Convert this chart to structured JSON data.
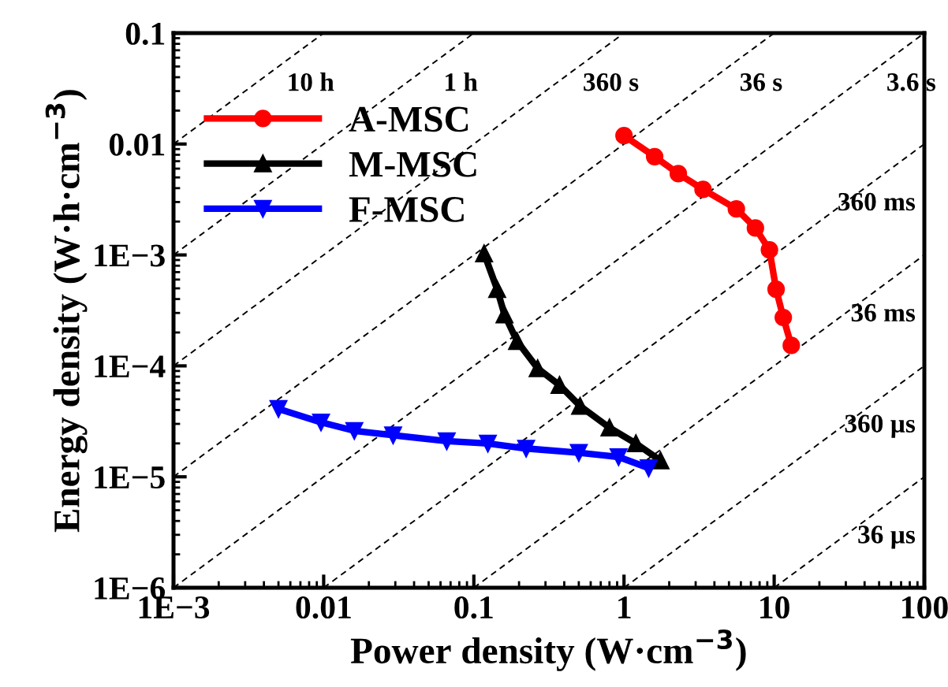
{
  "chart_data": {
    "type": "line",
    "xlabel": "Power density (W·cm$^{−3}$)",
    "ylabel": "Energy density (W·h·cm$^{−3}$)",
    "log": "xy",
    "xlim": [
      0.001,
      100
    ],
    "ylim": [
      1e-06,
      0.1
    ],
    "xticks": [
      {
        "value": 0.001,
        "label": "1E−3"
      },
      0.01,
      0.1,
      1,
      10,
      100
    ],
    "yticks": [
      {
        "value": 1e-06,
        "label": "1E−6"
      },
      {
        "value": 1e-05,
        "label": "1E−5"
      },
      {
        "value": 0.0001,
        "label": "1E−4"
      },
      {
        "value": 0.001,
        "label": "1E−3"
      },
      0.01,
      0.1
    ],
    "grid": false,
    "legend": "top left",
    "series": [
      {
        "name": "A-MSC",
        "color": "#ff0000",
        "marker": "circle",
        "line_style": "solid",
        "x": [
          1.0,
          1.6,
          2.3,
          3.36,
          5.6,
          7.5,
          9.3,
          10.3,
          11.5,
          13.0
        ],
        "values": [
          0.0119,
          0.0077,
          0.0054,
          0.0039,
          0.0026,
          0.00175,
          0.00111,
          0.00049,
          0.000273,
          0.000153
        ]
      },
      {
        "name": "M-MSC",
        "color": "#000000",
        "marker": "triangle",
        "line_style": "solid",
        "x": [
          0.117,
          0.143,
          0.16,
          0.194,
          0.266,
          0.372,
          0.51,
          0.8,
          1.2,
          1.75
        ],
        "values": [
          0.00103,
          0.00049,
          0.00029,
          0.000167,
          9.5e-05,
          6.7e-05,
          4.35e-05,
          2.77e-05,
          2e-05,
          1.4e-05
        ]
      },
      {
        "name": "F-MSC",
        "color": "#0000ff",
        "marker": "triangle_down",
        "line_style": "solid",
        "x": [
          0.005,
          0.0096,
          0.016,
          0.029,
          0.066,
          0.124,
          0.223,
          0.5,
          0.92,
          1.46
        ],
        "values": [
          4.1e-05,
          3.1e-05,
          2.6e-05,
          2.37e-05,
          2.1e-05,
          2e-05,
          1.8e-05,
          1.65e-05,
          1.51e-05,
          1.2e-05
        ]
      },
      {
        "name": "10 h",
        "color": "#000000",
        "marker": "none",
        "line_style": "dashed",
        "x": [
          0.001,
          0.01
        ],
        "values": [
          0.01,
          0.1
        ]
      },
      {
        "name": "1 h",
        "color": "#000000",
        "marker": "none",
        "line_style": "dashed",
        "x": [
          0.001,
          0.1
        ],
        "values": [
          0.001,
          0.1
        ]
      },
      {
        "name": "360 s",
        "color": "#000000",
        "marker": "none",
        "line_style": "dashed",
        "x": [
          0.001,
          1
        ],
        "values": [
          0.0001,
          0.1
        ]
      },
      {
        "name": "36 s",
        "color": "#000000",
        "marker": "none",
        "line_style": "dashed",
        "x": [
          0.001,
          10
        ],
        "values": [
          1e-05,
          0.1
        ]
      },
      {
        "name": "3.6 s",
        "color": "#000000",
        "marker": "none",
        "line_style": "dashed",
        "x": [
          0.001,
          100
        ],
        "values": [
          1e-06,
          0.1
        ]
      },
      {
        "name": "360 ms",
        "color": "#000000",
        "marker": "none",
        "line_style": "dashed",
        "x": [
          0.01,
          100
        ],
        "values": [
          1e-06,
          0.01
        ]
      },
      {
        "name": "36 ms",
        "color": "#000000",
        "marker": "none",
        "line_style": "dashed",
        "x": [
          0.1,
          100
        ],
        "values": [
          1e-06,
          0.001
        ]
      },
      {
        "name": "360 µs",
        "color": "#000000",
        "marker": "none",
        "line_style": "dashed",
        "x": [
          1,
          100
        ],
        "values": [
          1e-06,
          0.0001
        ]
      },
      {
        "name": "36 µs",
        "color": "#000000",
        "marker": "none",
        "line_style": "dashed",
        "x": [
          10,
          100
        ],
        "values": [
          1e-06,
          1e-05
        ]
      }
    ]
  }
}
